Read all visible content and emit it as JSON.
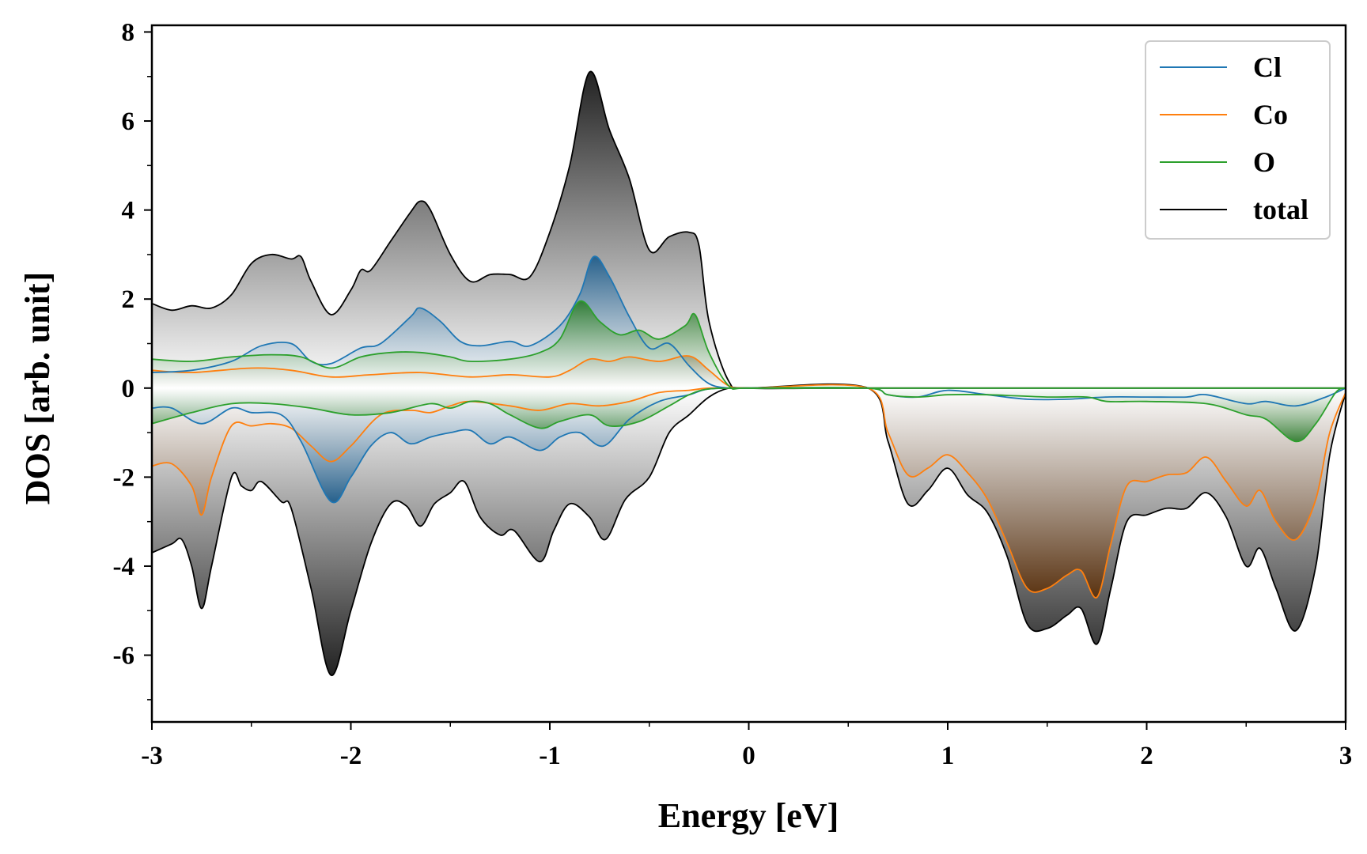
{
  "chart_data": {
    "type": "area",
    "title": "",
    "xlabel": "Energy [eV]",
    "ylabel": "DOS [arb. unit]",
    "xlim": [
      -3,
      3
    ],
    "ylim": [
      -7.5,
      8.15
    ],
    "xticks": [
      -3,
      -2,
      -1,
      0,
      1,
      2,
      3
    ],
    "yticks": [
      -6,
      -4,
      -2,
      0,
      2,
      4,
      6,
      8
    ],
    "grid": false,
    "legend_position": "top-right",
    "series": [
      {
        "name": "total",
        "color": "#000000",
        "fill": "#222222",
        "up": [
          [
            -3,
            1.9
          ],
          [
            -2.9,
            1.75
          ],
          [
            -2.8,
            1.85
          ],
          [
            -2.7,
            1.8
          ],
          [
            -2.6,
            2.1
          ],
          [
            -2.5,
            2.8
          ],
          [
            -2.4,
            3.0
          ],
          [
            -2.3,
            2.9
          ],
          [
            -2.25,
            2.95
          ],
          [
            -2.2,
            2.4
          ],
          [
            -2.1,
            1.65
          ],
          [
            -2.0,
            2.2
          ],
          [
            -1.95,
            2.65
          ],
          [
            -1.9,
            2.65
          ],
          [
            -1.8,
            3.3
          ],
          [
            -1.7,
            3.95
          ],
          [
            -1.65,
            4.2
          ],
          [
            -1.6,
            4.0
          ],
          [
            -1.5,
            3.0
          ],
          [
            -1.4,
            2.4
          ],
          [
            -1.3,
            2.55
          ],
          [
            -1.2,
            2.55
          ],
          [
            -1.1,
            2.5
          ],
          [
            -1.0,
            3.5
          ],
          [
            -0.9,
            5.0
          ],
          [
            -0.8,
            7.1
          ],
          [
            -0.7,
            5.8
          ],
          [
            -0.6,
            4.7
          ],
          [
            -0.5,
            3.1
          ],
          [
            -0.4,
            3.4
          ],
          [
            -0.3,
            3.5
          ],
          [
            -0.25,
            3.2
          ],
          [
            -0.2,
            1.5
          ],
          [
            -0.1,
            0.15
          ],
          [
            0,
            0
          ],
          [
            0.6,
            0
          ],
          [
            3,
            0
          ]
        ],
        "down": [
          [
            -3,
            -3.7
          ],
          [
            -2.9,
            -3.5
          ],
          [
            -2.85,
            -3.4
          ],
          [
            -2.8,
            -4.0
          ],
          [
            -2.75,
            -4.95
          ],
          [
            -2.7,
            -4.0
          ],
          [
            -2.6,
            -2.0
          ],
          [
            -2.55,
            -2.2
          ],
          [
            -2.5,
            -2.3
          ],
          [
            -2.45,
            -2.1
          ],
          [
            -2.35,
            -2.55
          ],
          [
            -2.3,
            -2.7
          ],
          [
            -2.2,
            -4.5
          ],
          [
            -2.1,
            -6.45
          ],
          [
            -2.0,
            -5.0
          ],
          [
            -1.9,
            -3.5
          ],
          [
            -1.8,
            -2.6
          ],
          [
            -1.72,
            -2.65
          ],
          [
            -1.65,
            -3.1
          ],
          [
            -1.58,
            -2.6
          ],
          [
            -1.5,
            -2.35
          ],
          [
            -1.43,
            -2.1
          ],
          [
            -1.35,
            -2.9
          ],
          [
            -1.25,
            -3.3
          ],
          [
            -1.18,
            -3.2
          ],
          [
            -1.05,
            -3.9
          ],
          [
            -0.98,
            -3.2
          ],
          [
            -0.9,
            -2.6
          ],
          [
            -0.8,
            -2.9
          ],
          [
            -0.72,
            -3.4
          ],
          [
            -0.62,
            -2.5
          ],
          [
            -0.5,
            -2.0
          ],
          [
            -0.4,
            -1.0
          ],
          [
            -0.3,
            -0.6
          ],
          [
            -0.2,
            -0.2
          ],
          [
            -0.1,
            0
          ],
          [
            0,
            0
          ],
          [
            0.6,
            0
          ],
          [
            0.7,
            -1.2
          ],
          [
            0.8,
            -2.6
          ],
          [
            0.9,
            -2.3
          ],
          [
            1.0,
            -1.8
          ],
          [
            1.1,
            -2.4
          ],
          [
            1.2,
            -2.8
          ],
          [
            1.3,
            -3.8
          ],
          [
            1.4,
            -5.3
          ],
          [
            1.5,
            -5.4
          ],
          [
            1.6,
            -5.1
          ],
          [
            1.67,
            -4.95
          ],
          [
            1.75,
            -5.75
          ],
          [
            1.82,
            -4.5
          ],
          [
            1.9,
            -3.0
          ],
          [
            2.0,
            -2.85
          ],
          [
            2.1,
            -2.7
          ],
          [
            2.2,
            -2.7
          ],
          [
            2.3,
            -2.35
          ],
          [
            2.4,
            -2.9
          ],
          [
            2.5,
            -4.0
          ],
          [
            2.57,
            -3.6
          ],
          [
            2.65,
            -4.5
          ],
          [
            2.75,
            -5.45
          ],
          [
            2.85,
            -4.0
          ],
          [
            2.92,
            -1.5
          ],
          [
            3,
            -0.1
          ]
        ]
      },
      {
        "name": "Co",
        "color": "#ff7f0e",
        "fill": "#5a2e08",
        "up": [
          [
            -3,
            0.4
          ],
          [
            -2.8,
            0.35
          ],
          [
            -2.5,
            0.45
          ],
          [
            -2.3,
            0.4
          ],
          [
            -2.1,
            0.25
          ],
          [
            -1.9,
            0.3
          ],
          [
            -1.65,
            0.35
          ],
          [
            -1.4,
            0.25
          ],
          [
            -1.2,
            0.3
          ],
          [
            -1.0,
            0.25
          ],
          [
            -0.9,
            0.4
          ],
          [
            -0.8,
            0.65
          ],
          [
            -0.7,
            0.6
          ],
          [
            -0.6,
            0.7
          ],
          [
            -0.45,
            0.6
          ],
          [
            -0.3,
            0.72
          ],
          [
            -0.2,
            0.4
          ],
          [
            -0.1,
            0.05
          ],
          [
            0,
            0
          ],
          [
            0.6,
            0
          ],
          [
            3,
            0
          ]
        ],
        "down": [
          [
            -3,
            -1.75
          ],
          [
            -2.9,
            -1.7
          ],
          [
            -2.8,
            -2.2
          ],
          [
            -2.75,
            -2.85
          ],
          [
            -2.7,
            -2.0
          ],
          [
            -2.6,
            -0.85
          ],
          [
            -2.5,
            -0.85
          ],
          [
            -2.4,
            -0.8
          ],
          [
            -2.3,
            -0.9
          ],
          [
            -2.2,
            -1.3
          ],
          [
            -2.1,
            -1.65
          ],
          [
            -2.0,
            -1.3
          ],
          [
            -1.85,
            -0.6
          ],
          [
            -1.7,
            -0.5
          ],
          [
            -1.6,
            -0.55
          ],
          [
            -1.5,
            -0.4
          ],
          [
            -1.4,
            -0.3
          ],
          [
            -1.2,
            -0.4
          ],
          [
            -1.05,
            -0.5
          ],
          [
            -0.9,
            -0.35
          ],
          [
            -0.75,
            -0.4
          ],
          [
            -0.6,
            -0.3
          ],
          [
            -0.45,
            -0.1
          ],
          [
            -0.3,
            -0.05
          ],
          [
            -0.2,
            0
          ],
          [
            0,
            0
          ],
          [
            0.6,
            0
          ],
          [
            0.7,
            -1.0
          ],
          [
            0.8,
            -1.95
          ],
          [
            0.9,
            -1.8
          ],
          [
            1.0,
            -1.5
          ],
          [
            1.1,
            -1.9
          ],
          [
            1.2,
            -2.5
          ],
          [
            1.3,
            -3.5
          ],
          [
            1.4,
            -4.5
          ],
          [
            1.5,
            -4.5
          ],
          [
            1.6,
            -4.2
          ],
          [
            1.67,
            -4.1
          ],
          [
            1.75,
            -4.7
          ],
          [
            1.82,
            -3.5
          ],
          [
            1.9,
            -2.2
          ],
          [
            2.0,
            -2.1
          ],
          [
            2.1,
            -1.95
          ],
          [
            2.2,
            -1.9
          ],
          [
            2.3,
            -1.55
          ],
          [
            2.4,
            -2.1
          ],
          [
            2.5,
            -2.65
          ],
          [
            2.57,
            -2.3
          ],
          [
            2.65,
            -3.0
          ],
          [
            2.75,
            -3.4
          ],
          [
            2.85,
            -2.5
          ],
          [
            2.92,
            -1.0
          ],
          [
            3,
            -0.1
          ]
        ]
      },
      {
        "name": "Cl",
        "color": "#1f77b4",
        "fill": "#1a5a8a",
        "up": [
          [
            -3,
            0.35
          ],
          [
            -2.8,
            0.4
          ],
          [
            -2.6,
            0.6
          ],
          [
            -2.45,
            0.95
          ],
          [
            -2.3,
            1.0
          ],
          [
            -2.2,
            0.6
          ],
          [
            -2.1,
            0.55
          ],
          [
            -1.95,
            0.9
          ],
          [
            -1.85,
            1.0
          ],
          [
            -1.7,
            1.6
          ],
          [
            -1.65,
            1.8
          ],
          [
            -1.55,
            1.5
          ],
          [
            -1.45,
            1.05
          ],
          [
            -1.35,
            0.95
          ],
          [
            -1.2,
            1.05
          ],
          [
            -1.1,
            0.95
          ],
          [
            -0.95,
            1.4
          ],
          [
            -0.85,
            2.1
          ],
          [
            -0.78,
            2.95
          ],
          [
            -0.7,
            2.5
          ],
          [
            -0.6,
            1.6
          ],
          [
            -0.5,
            0.9
          ],
          [
            -0.4,
            1.0
          ],
          [
            -0.3,
            0.5
          ],
          [
            -0.2,
            0.1
          ],
          [
            -0.1,
            0
          ],
          [
            0,
            0
          ],
          [
            0.6,
            0
          ],
          [
            3,
            0
          ]
        ],
        "down": [
          [
            -3,
            -0.45
          ],
          [
            -2.9,
            -0.45
          ],
          [
            -2.75,
            -0.8
          ],
          [
            -2.6,
            -0.45
          ],
          [
            -2.5,
            -0.55
          ],
          [
            -2.35,
            -0.6
          ],
          [
            -2.25,
            -1.2
          ],
          [
            -2.1,
            -2.55
          ],
          [
            -2.0,
            -2.0
          ],
          [
            -1.9,
            -1.3
          ],
          [
            -1.8,
            -1.0
          ],
          [
            -1.7,
            -1.25
          ],
          [
            -1.6,
            -1.1
          ],
          [
            -1.5,
            -1.0
          ],
          [
            -1.4,
            -0.95
          ],
          [
            -1.3,
            -1.25
          ],
          [
            -1.2,
            -1.1
          ],
          [
            -1.05,
            -1.4
          ],
          [
            -0.95,
            -1.1
          ],
          [
            -0.85,
            -1.0
          ],
          [
            -0.73,
            -1.3
          ],
          [
            -0.6,
            -0.7
          ],
          [
            -0.45,
            -0.3
          ],
          [
            -0.3,
            -0.15
          ],
          [
            -0.2,
            -0.02
          ],
          [
            0,
            0
          ],
          [
            0.6,
            0
          ],
          [
            0.7,
            -0.15
          ],
          [
            0.85,
            -0.2
          ],
          [
            1.0,
            -0.05
          ],
          [
            1.2,
            -0.15
          ],
          [
            1.4,
            -0.25
          ],
          [
            1.6,
            -0.25
          ],
          [
            1.8,
            -0.2
          ],
          [
            2.0,
            -0.2
          ],
          [
            2.2,
            -0.2
          ],
          [
            2.3,
            -0.15
          ],
          [
            2.5,
            -0.35
          ],
          [
            2.6,
            -0.3
          ],
          [
            2.75,
            -0.4
          ],
          [
            2.9,
            -0.2
          ],
          [
            3,
            0
          ]
        ]
      },
      {
        "name": "O",
        "color": "#2ca02c",
        "fill": "#2a7a2a",
        "up": [
          [
            -3,
            0.65
          ],
          [
            -2.8,
            0.6
          ],
          [
            -2.6,
            0.7
          ],
          [
            -2.4,
            0.75
          ],
          [
            -2.25,
            0.7
          ],
          [
            -2.1,
            0.45
          ],
          [
            -1.95,
            0.7
          ],
          [
            -1.8,
            0.8
          ],
          [
            -1.65,
            0.8
          ],
          [
            -1.5,
            0.7
          ],
          [
            -1.4,
            0.6
          ],
          [
            -1.2,
            0.65
          ],
          [
            -1.05,
            0.8
          ],
          [
            -0.95,
            1.1
          ],
          [
            -0.85,
            1.95
          ],
          [
            -0.75,
            1.5
          ],
          [
            -0.65,
            1.2
          ],
          [
            -0.55,
            1.3
          ],
          [
            -0.45,
            1.1
          ],
          [
            -0.32,
            1.4
          ],
          [
            -0.27,
            1.65
          ],
          [
            -0.2,
            0.8
          ],
          [
            -0.1,
            0.05
          ],
          [
            0,
            0
          ],
          [
            0.6,
            0
          ],
          [
            3,
            0
          ]
        ],
        "down": [
          [
            -3,
            -0.8
          ],
          [
            -2.8,
            -0.55
          ],
          [
            -2.6,
            -0.35
          ],
          [
            -2.4,
            -0.35
          ],
          [
            -2.2,
            -0.45
          ],
          [
            -2.0,
            -0.6
          ],
          [
            -1.8,
            -0.55
          ],
          [
            -1.6,
            -0.35
          ],
          [
            -1.5,
            -0.45
          ],
          [
            -1.4,
            -0.3
          ],
          [
            -1.3,
            -0.35
          ],
          [
            -1.2,
            -0.6
          ],
          [
            -1.05,
            -0.9
          ],
          [
            -0.95,
            -0.75
          ],
          [
            -0.8,
            -0.6
          ],
          [
            -0.7,
            -0.85
          ],
          [
            -0.55,
            -0.75
          ],
          [
            -0.4,
            -0.4
          ],
          [
            -0.3,
            -0.15
          ],
          [
            -0.2,
            -0.02
          ],
          [
            0,
            0
          ],
          [
            0.6,
            0
          ],
          [
            0.7,
            -0.15
          ],
          [
            0.85,
            -0.2
          ],
          [
            1.0,
            -0.15
          ],
          [
            1.2,
            -0.15
          ],
          [
            1.5,
            -0.2
          ],
          [
            1.7,
            -0.2
          ],
          [
            1.8,
            -0.3
          ],
          [
            2.0,
            -0.3
          ],
          [
            2.3,
            -0.35
          ],
          [
            2.5,
            -0.6
          ],
          [
            2.6,
            -0.7
          ],
          [
            2.75,
            -1.2
          ],
          [
            2.85,
            -0.8
          ],
          [
            2.95,
            -0.1
          ],
          [
            3,
            0
          ]
        ]
      }
    ],
    "legend": [
      {
        "label": "Cl",
        "color": "#1f77b4"
      },
      {
        "label": "Co",
        "color": "#ff7f0e"
      },
      {
        "label": "O",
        "color": "#2ca02c"
      },
      {
        "label": "total",
        "color": "#000000"
      }
    ]
  }
}
